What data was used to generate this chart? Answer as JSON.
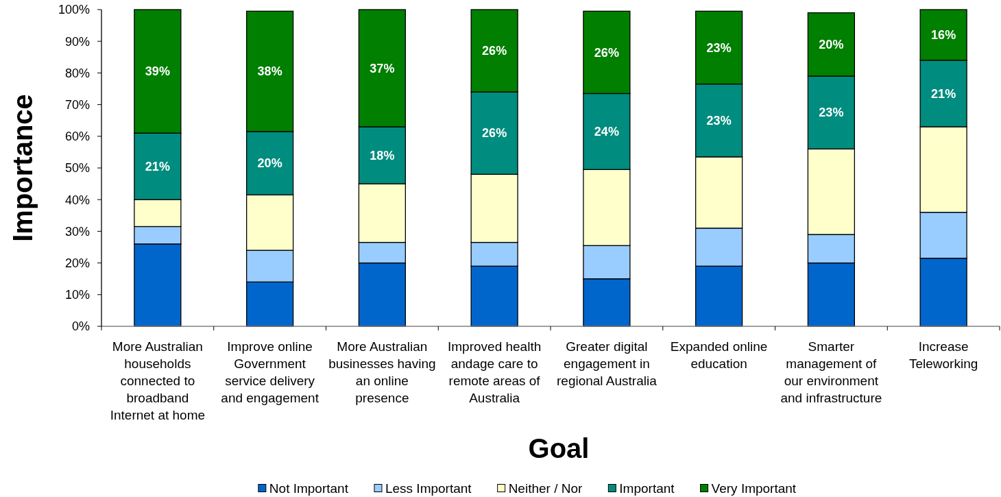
{
  "chart_data": {
    "type": "bar",
    "stacked": true,
    "xlabel": "Goal",
    "ylabel": "Importance",
    "categories": [
      "More Australian households connected to broadband Internet at home",
      "Improve online Government service delivery and engagement",
      "More Australian businesses having an online presence",
      "Improved health andage care to remote areas of Australia",
      "Greater digital engagement in regional Australia",
      "Expanded online education",
      "Smarter management of our environment and infrastructure",
      "Increase Teleworking"
    ],
    "series": [
      {
        "name": "Not Important",
        "color": "#0066cc",
        "values": [
          26,
          14,
          20,
          19,
          15,
          19,
          20,
          21.5
        ]
      },
      {
        "name": "Less Important",
        "color": "#99ccff",
        "values": [
          5.5,
          10,
          6.5,
          7.5,
          10.5,
          12,
          9,
          14.5
        ]
      },
      {
        "name": "Neither / Nor",
        "color": "#ffffcc",
        "values": [
          8.5,
          17.5,
          18.5,
          21.5,
          24,
          22.5,
          27,
          27
        ]
      },
      {
        "name": "Important",
        "color": "#008c7e",
        "values": [
          21,
          20,
          18,
          26,
          24,
          23,
          23,
          21
        ],
        "value_labels": [
          "21%",
          "20%",
          "18%",
          "26%",
          "24%",
          "23%",
          "23%",
          "21%"
        ]
      },
      {
        "name": "Very Important",
        "color": "#007f00",
        "values": [
          39,
          38,
          37,
          26,
          26,
          23,
          20,
          16
        ],
        "value_labels": [
          "39%",
          "38%",
          "37%",
          "26%",
          "26%",
          "23%",
          "20%",
          "16%"
        ]
      }
    ],
    "ylim": [
      0,
      100
    ],
    "yticks": [
      {
        "value": 0,
        "label": "0%"
      },
      {
        "value": 10,
        "label": "10%"
      },
      {
        "value": 20,
        "label": "20%"
      },
      {
        "value": 30,
        "label": "30%"
      },
      {
        "value": 40,
        "label": "40%"
      },
      {
        "value": 50,
        "label": "50%"
      },
      {
        "value": 60,
        "label": "60%"
      },
      {
        "value": 70,
        "label": "70%"
      },
      {
        "value": 80,
        "label": "80%"
      },
      {
        "value": 90,
        "label": "90%"
      },
      {
        "value": 100,
        "label": "100%"
      }
    ],
    "grid": false,
    "legend": "bottom"
  }
}
